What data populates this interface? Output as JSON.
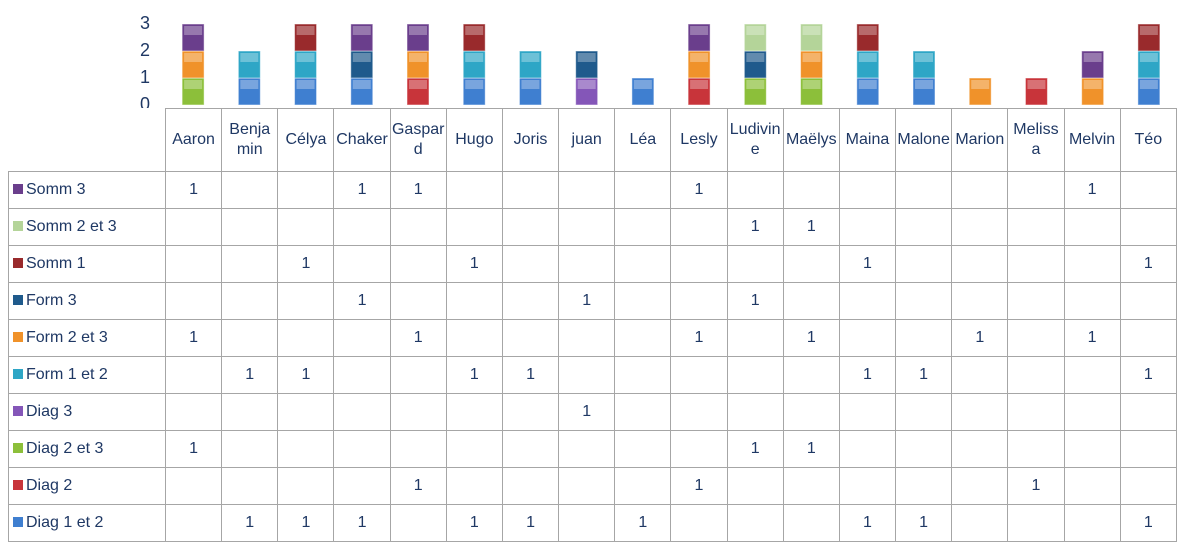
{
  "chart_data": {
    "type": "bar",
    "stacked": true,
    "categories": [
      "Aaron",
      "Benjamin",
      "Célya",
      "Chaker",
      "Gaspard",
      "Hugo",
      "Joris",
      "juan",
      "Léa",
      "Lesly",
      "Ludivine",
      "Maëlys",
      "Maina",
      "Malone",
      "Marion",
      "Melissa",
      "Melvin",
      "Téo"
    ],
    "ylim": [
      0,
      3
    ],
    "yticks": [
      0,
      1,
      2,
      3
    ],
    "series": [
      {
        "name": "Diag 1 et 2",
        "color": "#3f7fd0",
        "values": [
          null,
          1,
          1,
          1,
          null,
          1,
          1,
          null,
          1,
          null,
          null,
          null,
          1,
          1,
          null,
          null,
          null,
          1
        ]
      },
      {
        "name": "Diag 2",
        "color": "#c8343a",
        "values": [
          null,
          null,
          null,
          null,
          1,
          null,
          null,
          null,
          null,
          1,
          null,
          null,
          null,
          null,
          null,
          1,
          null,
          null
        ]
      },
      {
        "name": "Diag 2 et 3",
        "color": "#8cbf3a",
        "values": [
          1,
          null,
          null,
          null,
          null,
          null,
          null,
          null,
          null,
          null,
          1,
          1,
          null,
          null,
          null,
          null,
          null,
          null
        ]
      },
      {
        "name": "Diag 3",
        "color": "#8456b8",
        "values": [
          null,
          null,
          null,
          null,
          null,
          null,
          null,
          1,
          null,
          null,
          null,
          null,
          null,
          null,
          null,
          null,
          null,
          null
        ]
      },
      {
        "name": "Form 1 et 2",
        "color": "#2ea6c6",
        "values": [
          null,
          1,
          1,
          null,
          null,
          1,
          1,
          null,
          null,
          null,
          null,
          null,
          1,
          1,
          null,
          null,
          null,
          1
        ]
      },
      {
        "name": "Form 2 et 3",
        "color": "#f0922a",
        "values": [
          1,
          null,
          null,
          null,
          1,
          null,
          null,
          null,
          null,
          1,
          null,
          1,
          null,
          null,
          1,
          null,
          1,
          null
        ]
      },
      {
        "name": "Form 3",
        "color": "#1f5a8c",
        "values": [
          null,
          null,
          null,
          1,
          null,
          null,
          null,
          1,
          null,
          null,
          1,
          null,
          null,
          null,
          null,
          null,
          null,
          null
        ]
      },
      {
        "name": "Somm 1",
        "color": "#992a2c",
        "values": [
          null,
          null,
          1,
          null,
          null,
          1,
          null,
          null,
          null,
          null,
          null,
          null,
          1,
          null,
          null,
          null,
          null,
          1
        ]
      },
      {
        "name": "Somm 2 et 3",
        "color": "#b4d499",
        "values": [
          null,
          null,
          null,
          null,
          null,
          null,
          null,
          null,
          null,
          null,
          1,
          1,
          null,
          null,
          null,
          null,
          null,
          null
        ]
      },
      {
        "name": "Somm 3",
        "color": "#6a3e8c",
        "values": [
          1,
          null,
          null,
          1,
          1,
          null,
          null,
          null,
          null,
          1,
          null,
          null,
          null,
          null,
          null,
          null,
          1,
          null
        ]
      }
    ]
  }
}
